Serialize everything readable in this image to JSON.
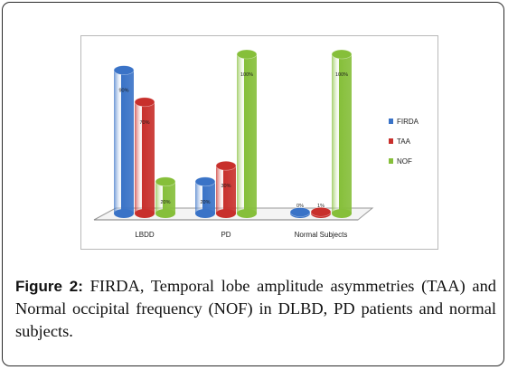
{
  "caption": {
    "lead": "Figure 2:",
    "text": " FIRDA, Temporal lobe amplitude asymmetries (TAA) and Normal occipital frequency (NOF) in DLBD, PD patients and normal subjects."
  },
  "chart_data": {
    "type": "bar",
    "style": "3d-cylinder",
    "categories": [
      "LBDD",
      "PD",
      "Normal Subjects"
    ],
    "series": [
      {
        "name": "FIRDA",
        "color": "#3a73c7",
        "values": [
          90,
          20,
          0
        ],
        "labels": [
          "90%",
          "20%",
          "0%"
        ]
      },
      {
        "name": "TAA",
        "color": "#c8302c",
        "values": [
          70,
          30,
          1
        ],
        "labels": [
          "70%",
          "30%",
          "1%"
        ]
      },
      {
        "name": "NOF",
        "color": "#86bf3a",
        "values": [
          20,
          100,
          100
        ],
        "labels": [
          "20%",
          "100%",
          "100%"
        ]
      }
    ],
    "ylim": [
      0,
      100
    ],
    "legend": "right",
    "grid": false
  }
}
